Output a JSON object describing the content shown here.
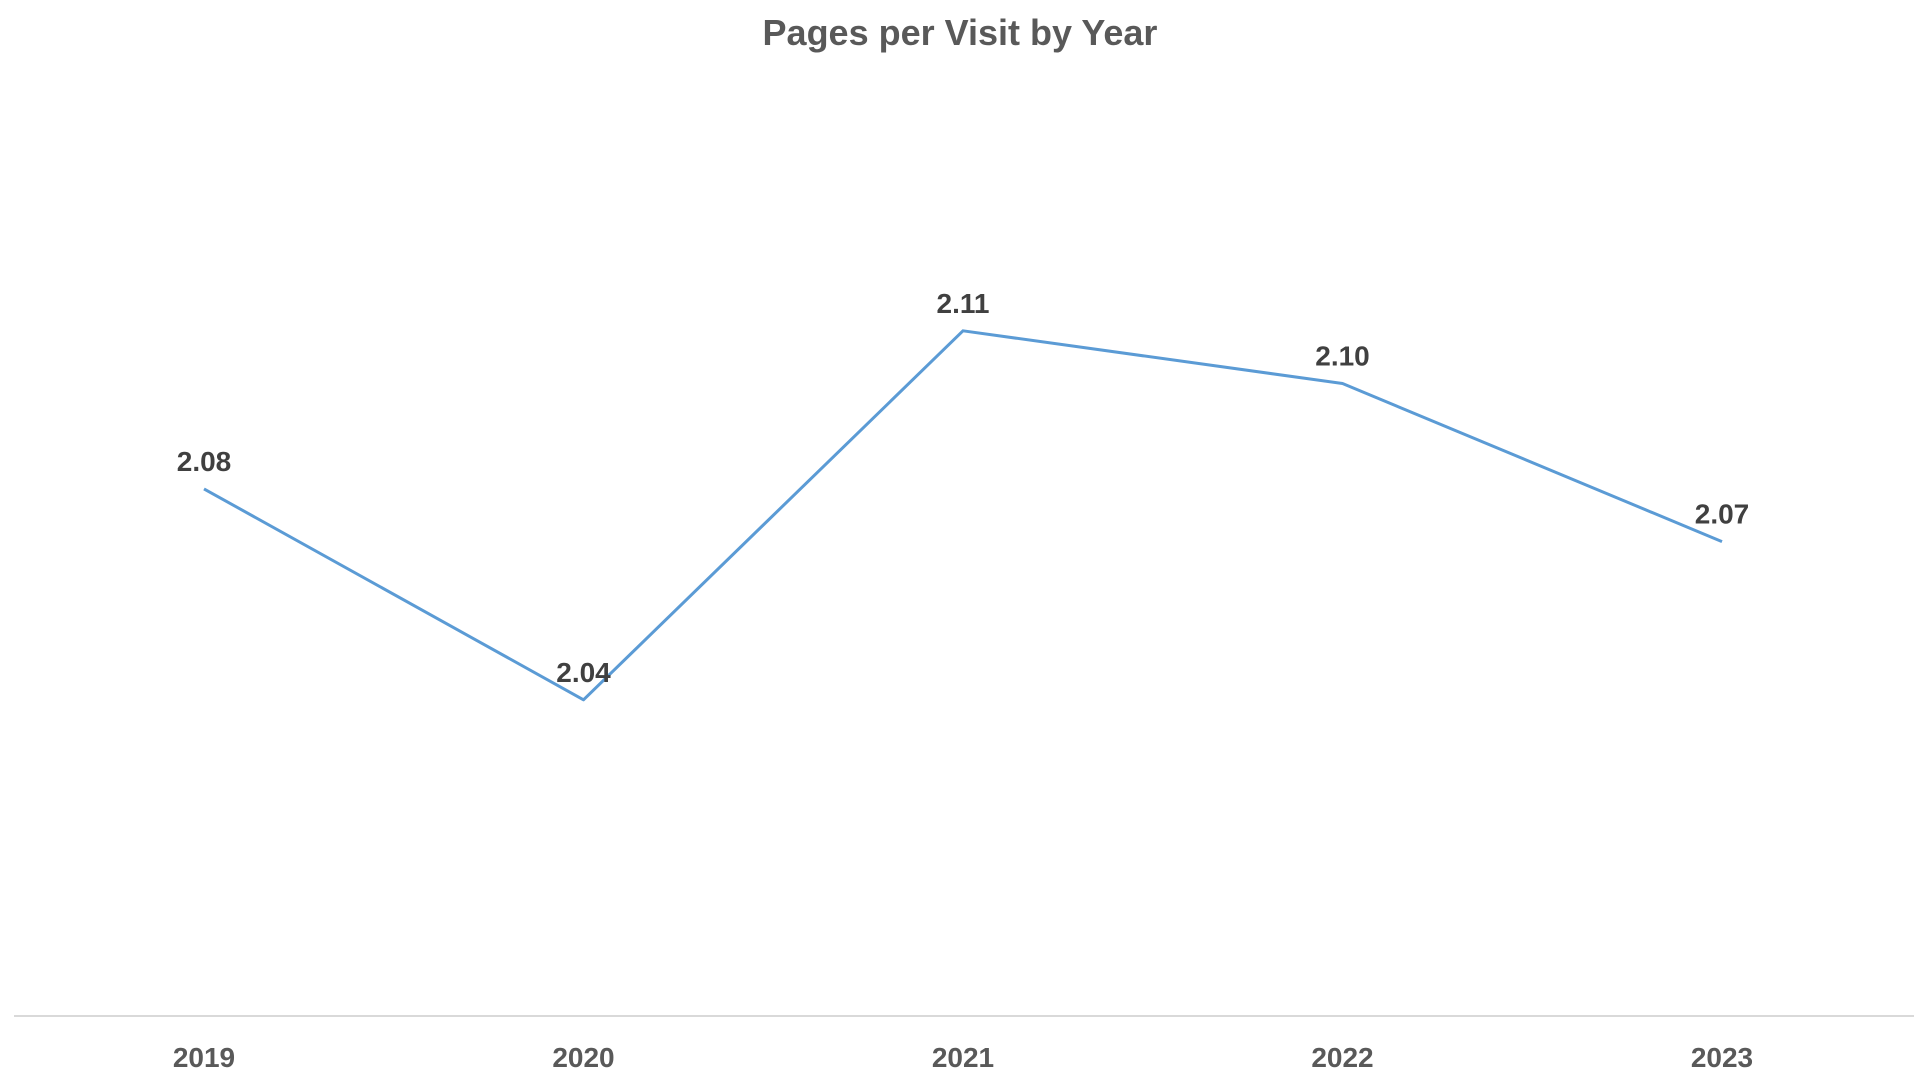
{
  "chart_data": {
    "type": "line",
    "title": "Pages per Visit by Year",
    "xlabel": "",
    "ylabel": "",
    "categories": [
      "2019",
      "2020",
      "2021",
      "2022",
      "2023"
    ],
    "series": [
      {
        "values": [
          2.08,
          2.04,
          2.11,
          2.1,
          2.07
        ],
        "data_labels": [
          "2.08",
          "2.04",
          "2.11",
          "2.10",
          "2.07"
        ],
        "color": "#5b9bd5"
      }
    ],
    "ylim": [
      1.98,
      2.15
    ],
    "grid": false,
    "y_axis_visible": false,
    "legend": "none",
    "axis_color": "#d9d9d9"
  }
}
